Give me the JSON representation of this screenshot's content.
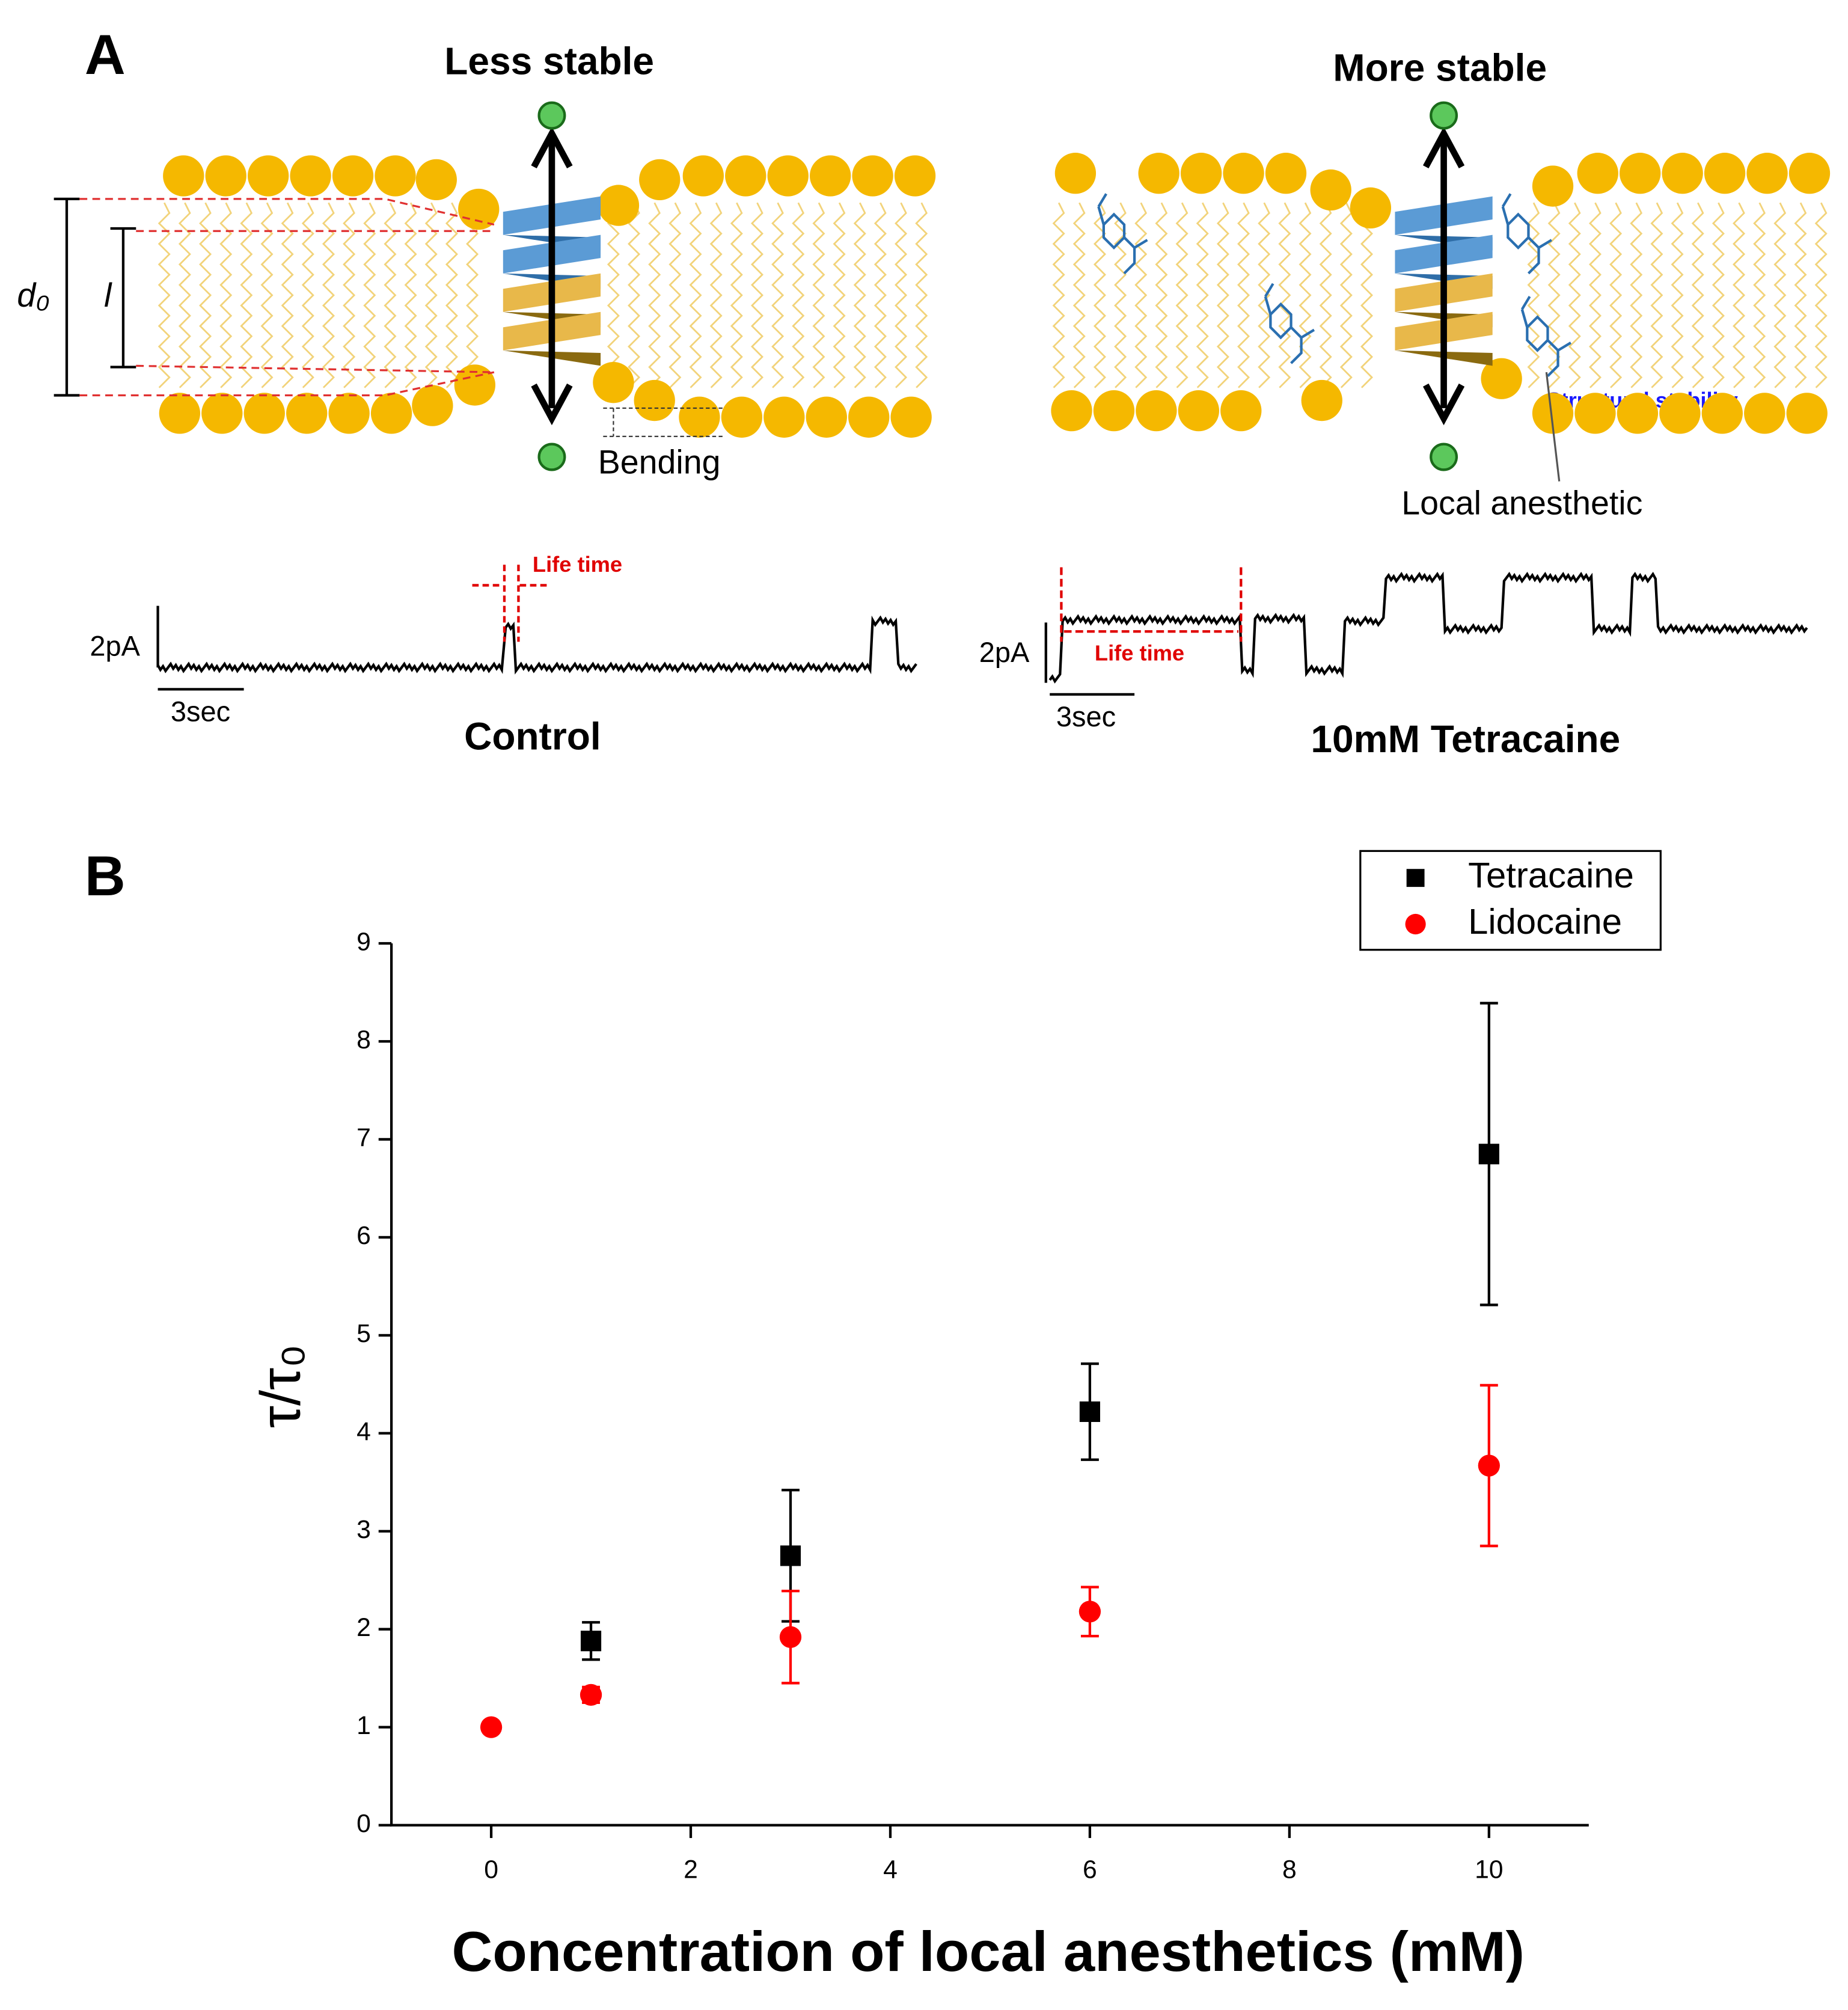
{
  "panel_a": {
    "label": "A",
    "left_title": "Less stable",
    "right_title": "More stable",
    "d0": "d₀",
    "l": "l",
    "bending": "Bending",
    "local_anesthetic": "Local anesthetic",
    "structural_stability": "Structural stability",
    "life_time_left": "Life time",
    "life_time_right": "Life time",
    "current_left": "2pA",
    "current_right": "2pA",
    "time_left": "3sec",
    "time_right": "3sec",
    "left_caption": "Control",
    "right_caption": "10mM Tetracaine"
  },
  "chart_data": {
    "type": "scatter",
    "panel_label": "B",
    "x_label": "Concentration of local anesthetics (mM)",
    "y_label": "τ/τ₀",
    "xlim": [
      -1,
      11
    ],
    "xticks": [
      0,
      2,
      4,
      6,
      8,
      10
    ],
    "ylim": [
      0,
      9
    ],
    "yticks": [
      0,
      1,
      2,
      3,
      4,
      5,
      6,
      7,
      8,
      9
    ],
    "legend": "upper right",
    "series": [
      {
        "name": "Tetracaine",
        "color": "#000000",
        "marker": "square",
        "x": [
          1,
          3,
          6,
          10
        ],
        "values": [
          1.88,
          2.75,
          4.22,
          6.85
        ],
        "errors": [
          0.19,
          0.67,
          0.49,
          1.54
        ]
      },
      {
        "name": "Lidocaine",
        "color": "#ff0000",
        "marker": "circle",
        "x": [
          0,
          1,
          3,
          6,
          10
        ],
        "values": [
          1.0,
          1.33,
          1.92,
          2.18,
          3.67
        ],
        "errors": [
          0.05,
          0.08,
          0.47,
          0.25,
          0.82
        ]
      }
    ]
  }
}
